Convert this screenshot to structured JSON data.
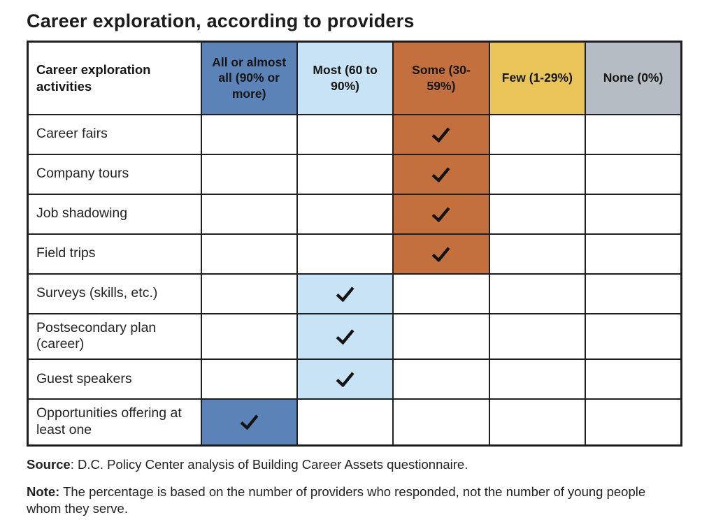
{
  "title": "Career exploration, according to providers",
  "source": {
    "label": "Source",
    "text": ": D.C. Policy Center analysis of Building Career Assets questionnaire."
  },
  "note": {
    "label": "Note:",
    "text": " The percentage is based on the number of providers who responded, not the number of young people whom they serve."
  },
  "check_symbol": "✓",
  "column_colors": [
    "#ffffff",
    "#5b83b8",
    "#c9e3f6",
    "#c3703e",
    "#e8c459",
    "#b5bcc4"
  ],
  "chart_data": {
    "type": "table",
    "title": "Career exploration, according to providers",
    "columns": [
      "Career exploration activities",
      "All or almost all (90% or more)",
      "Most (60 to 90%)",
      "Some (30-59%)",
      "Few (1-29%)",
      "None (0%)"
    ],
    "rows": [
      [
        "Career fairs",
        "",
        "",
        "✓",
        "",
        ""
      ],
      [
        "Company tours",
        "",
        "",
        "✓",
        "",
        ""
      ],
      [
        "Job shadowing",
        "",
        "",
        "✓",
        "",
        ""
      ],
      [
        "Field trips",
        "",
        "",
        "✓",
        "",
        ""
      ],
      [
        "Surveys (skills, etc.)",
        "",
        "✓",
        "",
        "",
        ""
      ],
      [
        "Postsecondary plan (career)",
        "",
        "✓",
        "",
        "",
        ""
      ],
      [
        "Guest speakers",
        "",
        "✓",
        "",
        "",
        ""
      ],
      [
        "Opportunities offering at least one",
        "✓",
        "",
        "",
        "",
        ""
      ]
    ],
    "grid": true,
    "legend_position": "none"
  }
}
